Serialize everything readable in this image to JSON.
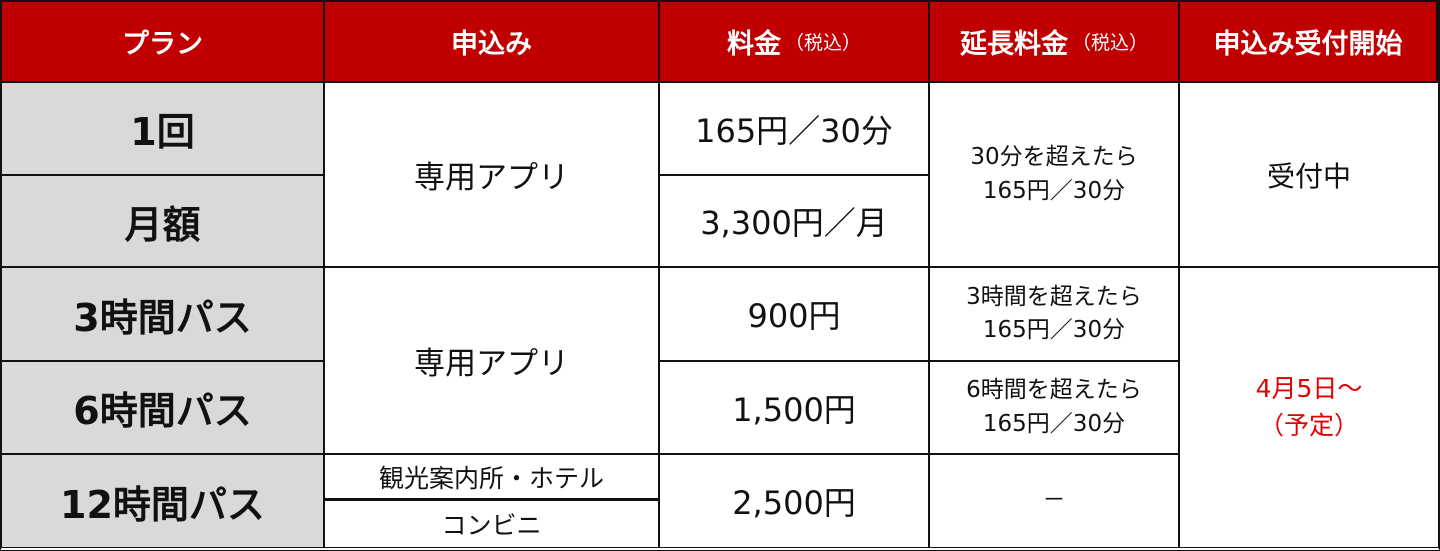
{
  "header": {
    "plan": "プラン",
    "apply": "申込み",
    "price": "料金",
    "price_note": "（税込）",
    "extension": "延長料金",
    "extension_note": "（税込）",
    "start": "申込み受付開始"
  },
  "rows": [
    {
      "plan": "1回",
      "price": "165円／30分"
    },
    {
      "plan": "月額",
      "price": "3,300円／月"
    },
    {
      "plan": "3時間パス",
      "price": "900円"
    },
    {
      "plan": "6時間パス",
      "price": "1,500円"
    },
    {
      "plan": "12時間パス",
      "price": "2,500円"
    }
  ],
  "apply": {
    "group1": "専用アプリ",
    "group2": "専用アプリ",
    "tourist_hotel": "観光案内所・ホテル",
    "convenience": "コンビニ"
  },
  "extension": {
    "group1_line1": "30分を超えたら",
    "group1_line2": "165円／30分",
    "pass3_line1": "3時間を超えたら",
    "pass3_line2": "165円／30分",
    "pass6_line1": "6時間を超えたら",
    "pass6_line2": "165円／30分",
    "pass12": "－"
  },
  "start": {
    "group1": "受付中",
    "group2_line1": "4月5日～",
    "group2_line2": "（予定）"
  },
  "colors": {
    "header_bg": "#c00000",
    "plan_bg": "#d9d9d9",
    "highlight": "#e00000"
  }
}
